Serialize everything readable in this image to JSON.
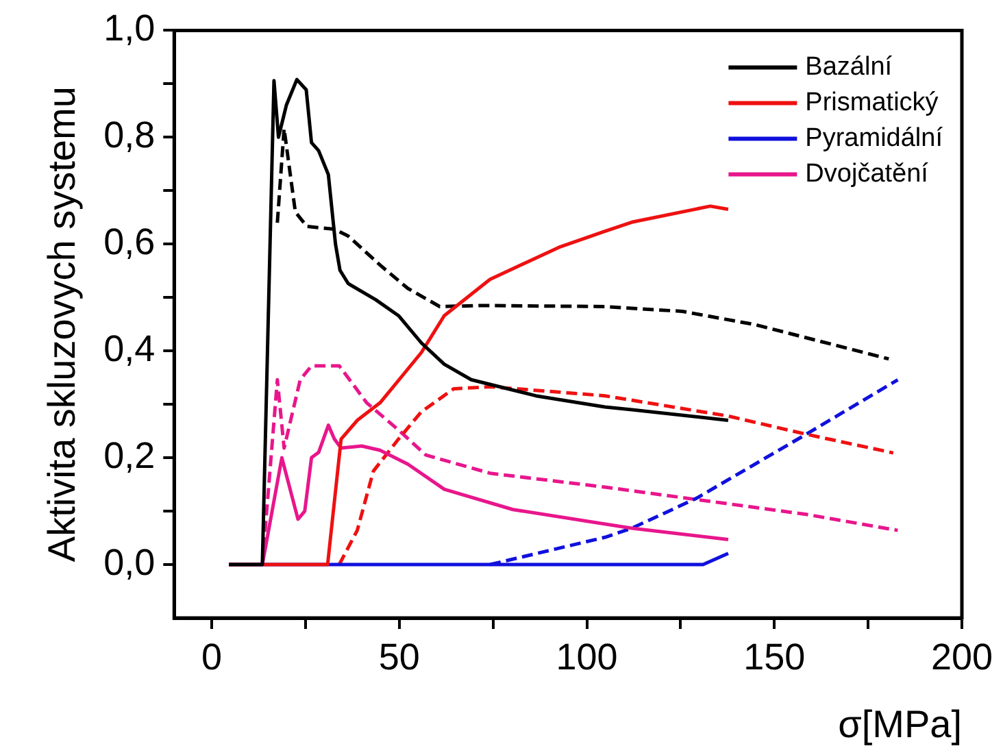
{
  "chart_data": {
    "type": "line",
    "xlabel": "σ[MPa]",
    "ylabel": "Aktivita skluzovych systemu",
    "xlim": [
      -10,
      200
    ],
    "ylim": [
      -0.1,
      1.0
    ],
    "xticks": [
      0,
      {
        "value": 25,
        "label": null
      },
      50,
      {
        "value": 75,
        "label": null
      },
      100,
      {
        "value": 125,
        "label": null
      },
      150,
      {
        "value": 175,
        "label": null
      },
      200
    ],
    "yticks": [
      {
        "value": 0,
        "label": "0,0"
      },
      {
        "value": 0.1,
        "label": null
      },
      {
        "value": 0.2,
        "label": "0,2"
      },
      {
        "value": 0.3,
        "label": null
      },
      {
        "value": 0.4,
        "label": "0,4"
      },
      {
        "value": 0.5,
        "label": null
      },
      {
        "value": 0.6,
        "label": "0,6"
      },
      {
        "value": 0.7,
        "label": null
      },
      {
        "value": 0.8,
        "label": "0,8"
      },
      {
        "value": 0.9,
        "label": null
      },
      {
        "value": 1.0,
        "label": "1,0"
      }
    ],
    "grid": false,
    "legend": "top right",
    "marker": "none",
    "series": [
      {
        "name": "Bazální",
        "color": "#000000",
        "line_style": "solid",
        "x": [
          4.6,
          13.5,
          16.6,
          17.8,
          19.9,
          22.7,
          25.2,
          26.6,
          28.5,
          31.1,
          33,
          34.2,
          36.4,
          43.7,
          49.8,
          55.9,
          62,
          69.2,
          86.4,
          104.8,
          112,
          137.7
        ],
        "values": [
          0,
          0,
          0.906,
          0.8,
          0.86,
          0.908,
          0.889,
          0.79,
          0.775,
          0.73,
          0.6,
          0.551,
          0.526,
          0.496,
          0.466,
          0.415,
          0.375,
          0.346,
          0.316,
          0.295,
          0.29,
          0.27
        ]
      },
      {
        "name": "Prismatický",
        "color": "#ee1111",
        "line_style": "solid",
        "x": [
          4.6,
          30.9,
          34.5,
          38.8,
          44.9,
          51,
          55.9,
          62,
          74.2,
          92.6,
          104.8,
          112,
          132.9,
          137.7
        ],
        "values": [
          0,
          0,
          0.235,
          0.27,
          0.303,
          0.355,
          0.397,
          0.466,
          0.534,
          0.594,
          0.624,
          0.641,
          0.671,
          0.665
        ]
      },
      {
        "name": "Pyramidální",
        "color": "#1010dd",
        "line_style": "solid",
        "x": [
          4.6,
          131,
          137.7
        ],
        "values": [
          0,
          0,
          0.021
        ]
      },
      {
        "name": "Dvojčatění",
        "color": "#e8168c",
        "line_style": "solid",
        "x": [
          4.6,
          13.5,
          18.7,
          23,
          24.8,
          26.6,
          28.5,
          31.1,
          32.7,
          34.5,
          40,
          44.9,
          52.3,
          62,
          80.3,
          112,
          137.7
        ],
        "values": [
          0,
          0,
          0.2,
          0.085,
          0.1,
          0.2,
          0.21,
          0.261,
          0.235,
          0.218,
          0.222,
          0.214,
          0.188,
          0.141,
          0.103,
          0.068,
          0.047
        ]
      },
      {
        "color": "#000000",
        "line_style": "dashed",
        "x": [
          17.5,
          19.3,
          22.3,
          25.4,
          32.7,
          36.4,
          45,
          52.3,
          60.8,
          71.8,
          104.8,
          125.5,
          145,
          180.5
        ],
        "values": [
          0.64,
          0.816,
          0.66,
          0.633,
          0.628,
          0.615,
          0.56,
          0.517,
          0.483,
          0.485,
          0.483,
          0.474,
          0.449,
          0.385
        ]
      },
      {
        "color": "#ee1111",
        "line_style": "dashed",
        "x": [
          34,
          38.8,
          43.1,
          49.8,
          55.9,
          64.5,
          74.2,
          104.8,
          137.7,
          158.5,
          181.7
        ],
        "values": [
          0,
          0.064,
          0.175,
          0.235,
          0.286,
          0.329,
          0.333,
          0.316,
          0.278,
          0.244,
          0.209
        ]
      },
      {
        "color": "#1010dd",
        "line_style": "dashed",
        "x": [
          74.2,
          104.8,
          112,
          129.2,
          158.5,
          182.9
        ],
        "values": [
          0,
          0.051,
          0.068,
          0.124,
          0.244,
          0.346
        ]
      },
      {
        "color": "#e8168c",
        "line_style": "dashed",
        "x": [
          13.5,
          17.5,
          19.3,
          23.6,
          26.6,
          34,
          41.3,
          49.8,
          57.1,
          74.2,
          104.8,
          158.5,
          182.9
        ],
        "values": [
          0,
          0.346,
          0.218,
          0.346,
          0.372,
          0.372,
          0.303,
          0.252,
          0.205,
          0.171,
          0.145,
          0.094,
          0.064
        ]
      }
    ]
  }
}
